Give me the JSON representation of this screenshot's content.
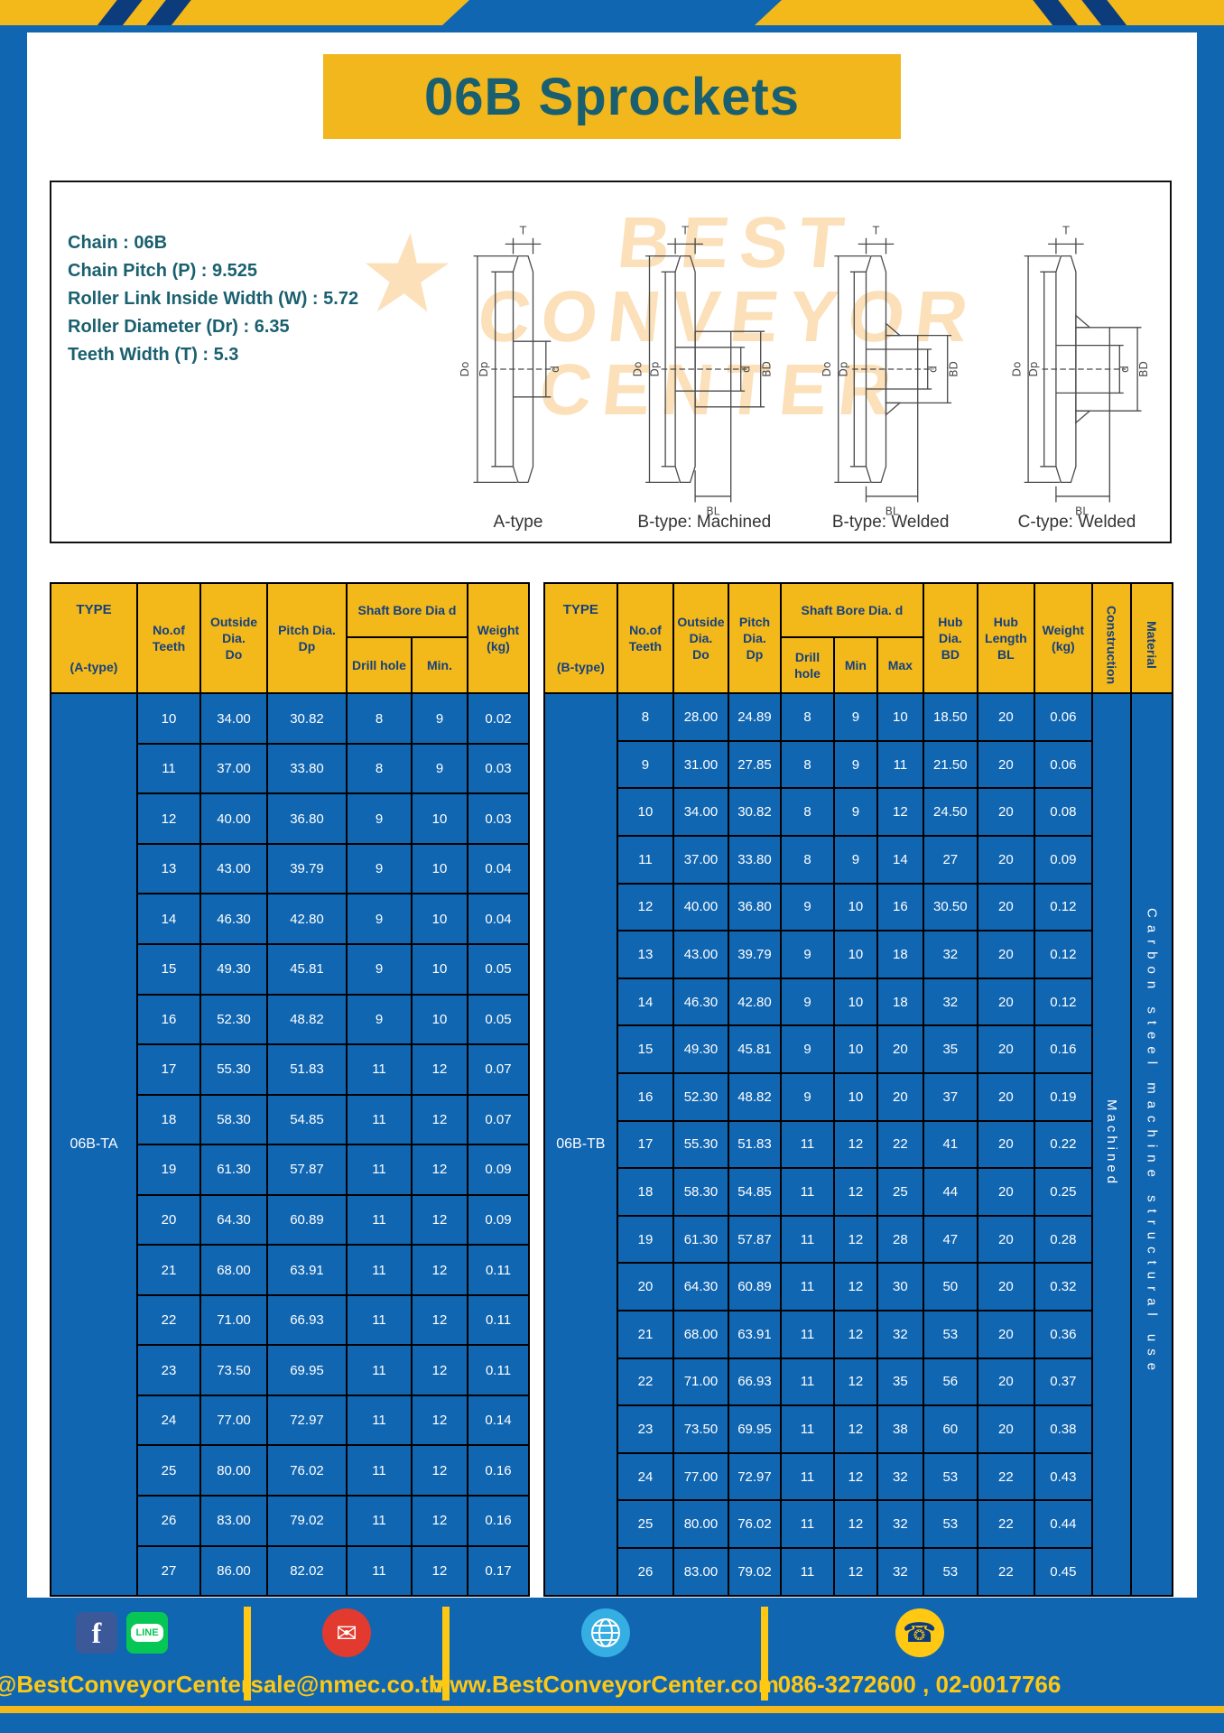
{
  "colors": {
    "blue": "#1166b2",
    "yellow": "#f3b81a",
    "teal": "#1a5f70",
    "navy": "#14407e",
    "footer_yellow": "#ffc813",
    "red": "#e23a2e",
    "green": "#06c755",
    "fb_blue": "#3b5998",
    "light_blue": "#35aee3",
    "watermark_orange": "#f59b1c"
  },
  "page": {
    "title": "06B Sprockets"
  },
  "specs": {
    "lines": [
      "Chain : 06B",
      "Chain Pitch (P) : 9.525",
      "Roller Link Inside Width (W) : 5.72",
      "Roller Diameter (Dr) : 6.35",
      "Teeth Width (T) : 5.3"
    ]
  },
  "drawings": {
    "labels": [
      "A-type",
      "B-type: Machined",
      "B-type: Welded",
      "C-type: Welded"
    ],
    "dims": {
      "t": "T",
      "do": "Do",
      "dp": "Dp",
      "d": "d",
      "bd": "BD",
      "bl": "BL"
    },
    "watermark": {
      "l1": "BEST",
      "l2": "CONVEYOR",
      "l3": "CENTER"
    }
  },
  "table_a": {
    "headers": {
      "type": "TYPE",
      "type_sub": "(A-type)",
      "teeth": "No.of\nTeeth",
      "outside": "Outside\nDia.\nDo",
      "pitch": "Pitch Dia.\nDp",
      "shaft": "Shaft Bore Dia d",
      "drill": "Drill hole",
      "min": "Min.",
      "weight": "Weight\n(kg)"
    },
    "type_value": "06B-TA",
    "rows": [
      [
        "10",
        "34.00",
        "30.82",
        "8",
        "9",
        "0.02"
      ],
      [
        "11",
        "37.00",
        "33.80",
        "8",
        "9",
        "0.03"
      ],
      [
        "12",
        "40.00",
        "36.80",
        "9",
        "10",
        "0.03"
      ],
      [
        "13",
        "43.00",
        "39.79",
        "9",
        "10",
        "0.04"
      ],
      [
        "14",
        "46.30",
        "42.80",
        "9",
        "10",
        "0.04"
      ],
      [
        "15",
        "49.30",
        "45.81",
        "9",
        "10",
        "0.05"
      ],
      [
        "16",
        "52.30",
        "48.82",
        "9",
        "10",
        "0.05"
      ],
      [
        "17",
        "55.30",
        "51.83",
        "11",
        "12",
        "0.07"
      ],
      [
        "18",
        "58.30",
        "54.85",
        "11",
        "12",
        "0.07"
      ],
      [
        "19",
        "61.30",
        "57.87",
        "11",
        "12",
        "0.09"
      ],
      [
        "20",
        "64.30",
        "60.89",
        "11",
        "12",
        "0.09"
      ],
      [
        "21",
        "68.00",
        "63.91",
        "11",
        "12",
        "0.11"
      ],
      [
        "22",
        "71.00",
        "66.93",
        "11",
        "12",
        "0.11"
      ],
      [
        "23",
        "73.50",
        "69.95",
        "11",
        "12",
        "0.11"
      ],
      [
        "24",
        "77.00",
        "72.97",
        "11",
        "12",
        "0.14"
      ],
      [
        "25",
        "80.00",
        "76.02",
        "11",
        "12",
        "0.16"
      ],
      [
        "26",
        "83.00",
        "79.02",
        "11",
        "12",
        "0.16"
      ],
      [
        "27",
        "86.00",
        "82.02",
        "11",
        "12",
        "0.17"
      ]
    ]
  },
  "table_b": {
    "headers": {
      "type": "TYPE",
      "type_sub": "(B-type)",
      "teeth": "No.of\nTeeth",
      "outside": "Outside\nDia.\nDo",
      "pitch": "Pitch\nDia.\nDp",
      "shaft": "Shaft Bore Dia. d",
      "drill": "Drill hole",
      "min": "Min",
      "max": "Max",
      "hub_dia": "Hub\nDia.\nBD",
      "hub_len": "Hub\nLength\nBL",
      "weight": "Weight\n(kg)",
      "construction": "Construction",
      "material": "Material"
    },
    "type_value": "06B-TB",
    "construction_value": "Machined",
    "material_value": "Carbon steel machine structural use",
    "rows": [
      [
        "8",
        "28.00",
        "24.89",
        "8",
        "9",
        "10",
        "18.50",
        "20",
        "0.06"
      ],
      [
        "9",
        "31.00",
        "27.85",
        "8",
        "9",
        "11",
        "21.50",
        "20",
        "0.06"
      ],
      [
        "10",
        "34.00",
        "30.82",
        "8",
        "9",
        "12",
        "24.50",
        "20",
        "0.08"
      ],
      [
        "11",
        "37.00",
        "33.80",
        "8",
        "9",
        "14",
        "27",
        "20",
        "0.09"
      ],
      [
        "12",
        "40.00",
        "36.80",
        "9",
        "10",
        "16",
        "30.50",
        "20",
        "0.12"
      ],
      [
        "13",
        "43.00",
        "39.79",
        "9",
        "10",
        "18",
        "32",
        "20",
        "0.12"
      ],
      [
        "14",
        "46.30",
        "42.80",
        "9",
        "10",
        "18",
        "32",
        "20",
        "0.12"
      ],
      [
        "15",
        "49.30",
        "45.81",
        "9",
        "10",
        "20",
        "35",
        "20",
        "0.16"
      ],
      [
        "16",
        "52.30",
        "48.82",
        "9",
        "10",
        "20",
        "37",
        "20",
        "0.19"
      ],
      [
        "17",
        "55.30",
        "51.83",
        "11",
        "12",
        "22",
        "41",
        "20",
        "0.22"
      ],
      [
        "18",
        "58.30",
        "54.85",
        "11",
        "12",
        "25",
        "44",
        "20",
        "0.25"
      ],
      [
        "19",
        "61.30",
        "57.87",
        "11",
        "12",
        "28",
        "47",
        "20",
        "0.28"
      ],
      [
        "20",
        "64.30",
        "60.89",
        "11",
        "12",
        "30",
        "50",
        "20",
        "0.32"
      ],
      [
        "21",
        "68.00",
        "63.91",
        "11",
        "12",
        "32",
        "53",
        "20",
        "0.36"
      ],
      [
        "22",
        "71.00",
        "66.93",
        "11",
        "12",
        "35",
        "56",
        "20",
        "0.37"
      ],
      [
        "23",
        "73.50",
        "69.95",
        "11",
        "12",
        "38",
        "60",
        "20",
        "0.38"
      ],
      [
        "24",
        "77.00",
        "72.97",
        "11",
        "12",
        "32",
        "53",
        "22",
        "0.43"
      ],
      [
        "25",
        "80.00",
        "76.02",
        "11",
        "12",
        "32",
        "53",
        "22",
        "0.44"
      ],
      [
        "26",
        "83.00",
        "79.02",
        "11",
        "12",
        "32",
        "53",
        "22",
        "0.45"
      ]
    ]
  },
  "footer": {
    "social": "@BestConveyorCenter",
    "email": "sale@nmec.co.th",
    "website": "www.BestConveyorCenter.com",
    "phone": "086-3272600 , 02-0017766",
    "fb": "f",
    "line": "LINE"
  }
}
